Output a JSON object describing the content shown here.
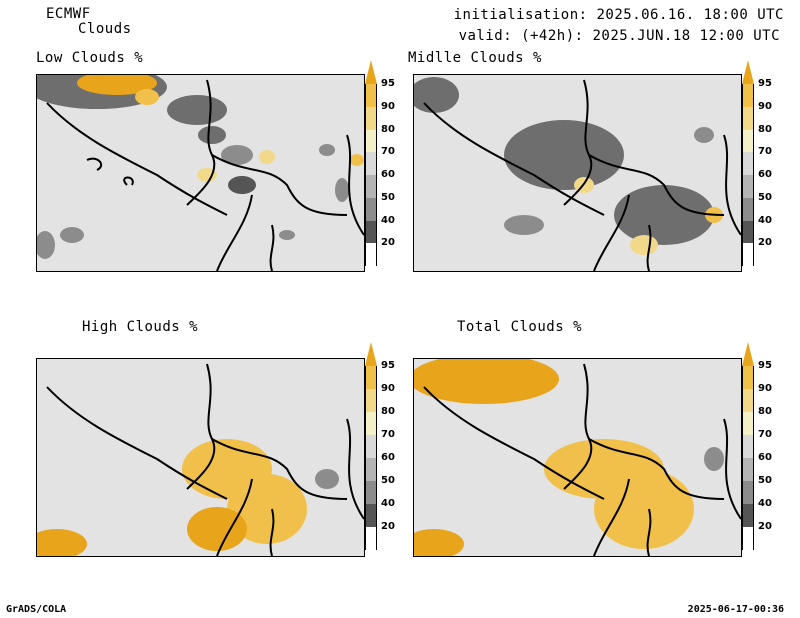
{
  "header": {
    "source": "ECMWF",
    "product": "Clouds",
    "init": "initialisation: 2025.06.16. 18:00 UTC",
    "valid": "valid: (+42h): 2025.JUN.18 12:00 UTC"
  },
  "panels": [
    {
      "title": "Low Clouds %"
    },
    {
      "title": "Midlle Clouds %"
    },
    {
      "title": "High Clouds %"
    },
    {
      "title": "Total Clouds %"
    }
  ],
  "colorbar": {
    "levels": [
      "95",
      "90",
      "80",
      "70",
      "60",
      "50",
      "40",
      "20"
    ],
    "colors": [
      "#e8a51c",
      "#f0c04a",
      "#f2d98a",
      "#f3f0c6",
      "#d9d9d9",
      "#b4b4b4",
      "#8c8c8c",
      "#555555",
      "#ffffff"
    ]
  },
  "footer": {
    "left": "GrADS/COLA",
    "right": "2025-06-17-00:36"
  }
}
